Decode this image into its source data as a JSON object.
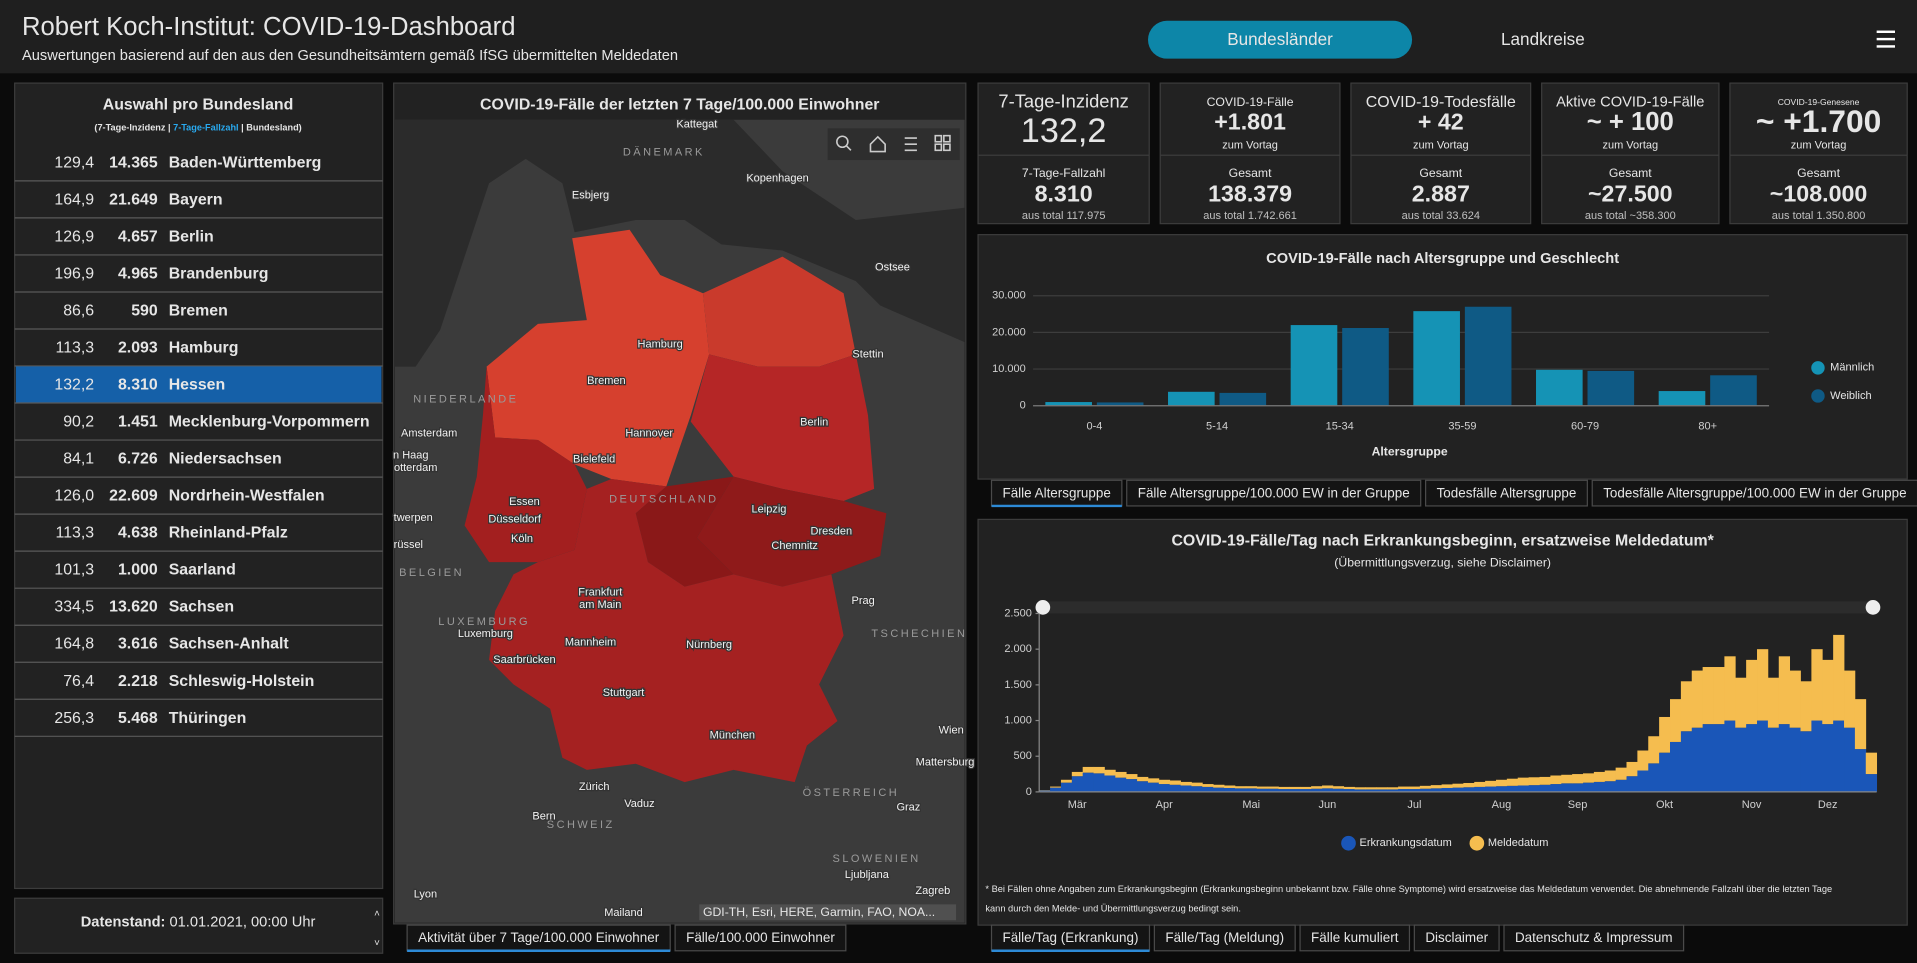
{
  "header": {
    "title": "Robert Koch-Institut: COVID-19-Dashboard",
    "subtitle": "Auswertungen basierend auf den aus den Gesundheitsämtern gemäß IfSG übermittelten Meldedaten",
    "tabs": [
      "Bundesländer",
      "Landkreise"
    ]
  },
  "states": {
    "title": "Auswahl pro Bundesland",
    "legend": [
      "(7-Tage-Inzidenz |",
      "7-Tage-Fallzahl",
      "| Bundesland)"
    ],
    "rows": [
      [
        "129,4",
        "14.365",
        "Baden-Württemberg"
      ],
      [
        "164,9",
        "21.649",
        "Bayern"
      ],
      [
        "126,9",
        "4.657",
        "Berlin"
      ],
      [
        "196,9",
        "4.965",
        "Brandenburg"
      ],
      [
        "86,6",
        "590",
        "Bremen"
      ],
      [
        "113,3",
        "2.093",
        "Hamburg"
      ],
      [
        "132,2",
        "8.310",
        "Hessen"
      ],
      [
        "90,2",
        "1.451",
        "Mecklenburg-Vorpommern"
      ],
      [
        "84,1",
        "6.726",
        "Niedersachsen"
      ],
      [
        "126,0",
        "22.609",
        "Nordrhein-Westfalen"
      ],
      [
        "113,3",
        "4.638",
        "Rheinland-Pfalz"
      ],
      [
        "101,3",
        "1.000",
        "Saarland"
      ],
      [
        "334,5",
        "13.620",
        "Sachsen"
      ],
      [
        "164,8",
        "3.616",
        "Sachsen-Anhalt"
      ],
      [
        "76,4",
        "2.218",
        "Schleswig-Holstein"
      ],
      [
        "256,3",
        "5.468",
        "Thüringen"
      ]
    ],
    "status_label": "Datenstand:",
    "status_value": "01.01.2021, 00:00 Uhr"
  },
  "map": {
    "title": "COVID-19-Fälle der letzten 7 Tage/100.000 Einwohner",
    "labels": [
      "Kattegat",
      "DÄNEMARK",
      "Kopenhagen",
      "Esbjerg",
      "Ostsee",
      "Hamburg",
      "Stettin",
      "Bremen",
      "NIEDERLANDE",
      "Amsterdam",
      "Hannover",
      "Berlin",
      "n Haag",
      "Bielefeld",
      "otterdam",
      "DEUTSCHLAND",
      "Essen",
      "Leipzig",
      "twerpen",
      "Düsseldorf",
      "Dresden",
      "Köln",
      "rüssel",
      "Chemnitz",
      "BELGIEN",
      "Frankfurt",
      "am Main",
      "Prag",
      "LUXEMBURG",
      "Luxemburg",
      "TSCHECHIEN",
      "Mannheim",
      "Nürnberg",
      "Saarbrücken",
      "Stuttgart",
      "München",
      "Wien",
      "Mattersburg",
      "Zürich",
      "ÖSTERREICH",
      "Vaduz",
      "Graz",
      "Bern",
      "SCHWEIZ",
      "SLOWENIEN",
      "Ljubljana",
      "Zagreb",
      "Lyon",
      "Mailand"
    ],
    "attribution": "GDI-TH, Esri, HERE, Garmin, FAO, NOA...",
    "tabs": [
      "Aktivität über 7 Tage/100.000 Einwohner",
      "Fälle/100.000 Einwohner"
    ]
  },
  "kpis": [
    {
      "label": "7-Tage-Inzidenz",
      "value": "132,2",
      "bottom_label": "7-Tage-Fallzahl",
      "bottom_value": "8.310",
      "bottom_note": "aus total 117.975",
      "colors": [
        "#ffffff",
        "#29aaf0"
      ]
    },
    {
      "label": "COVID-19-Fälle",
      "value": "+1.801",
      "note": "zum Vortag",
      "bottom_label": "Gesamt",
      "bottom_value": "138.379",
      "bottom_note": "aus total 1.742.661",
      "colors": [
        "#29aaf0",
        "#29aaf0"
      ]
    },
    {
      "label": "COVID-19-Todesfälle",
      "value": "+ 42",
      "note": "zum Vortag",
      "bottom_label": "Gesamt",
      "bottom_value": "2.887",
      "bottom_note": "aus total 33.624",
      "colors": [
        "#bdbdbd",
        "#bdbdbd"
      ]
    },
    {
      "label": "Aktive COVID-19-Fälle",
      "value": "~ + 100",
      "note": "zum Vortag",
      "bottom_label": "Gesamt",
      "bottom_value": "~27.500",
      "bottom_note": "aus total ~358.300",
      "colors": [
        "#f5a623",
        "#f5a623"
      ]
    },
    {
      "label": "COVID-19-Genesene",
      "value": "~ +1.700",
      "note": "zum Vortag",
      "bottom_label": "Gesamt",
      "bottom_value": "~108.000",
      "bottom_note": "aus total 1.350.800",
      "colors": [
        "#4caf1a",
        "#4caf1a"
      ]
    }
  ],
  "age_tabs": [
    "Fälle Altersgruppe",
    "Fälle Altersgruppe/100.000 EW in der Gruppe",
    "Todesfälle Altersgruppe",
    "Todesfälle Altersgruppe/100.000 EW in der Gruppe"
  ],
  "daily_tabs": [
    "Fälle/Tag (Erkrankung)",
    "Fälle/Tag (Meldung)",
    "Fälle kumuliert",
    "Disclaimer",
    "Datenschutz & Impressum"
  ],
  "chart_data": [
    {
      "type": "bar",
      "title": "COVID-19-Fälle nach Altersgruppe und Geschlecht",
      "x_label": "Altersgruppe",
      "categories": [
        "0-4",
        "5-14",
        "15-34",
        "35-59",
        "60-79",
        "80+"
      ],
      "series": [
        {
          "name": "Männlich",
          "color": "#1593b5",
          "values": [
            1000,
            3800,
            22000,
            25800,
            9800,
            4000
          ]
        },
        {
          "name": "Weiblich",
          "color": "#0f5a85",
          "values": [
            900,
            3500,
            21200,
            27000,
            9500,
            8300
          ]
        }
      ],
      "ylim": [
        0,
        30000
      ],
      "yticks": [
        0,
        {
          "value": 10000,
          "label": "10.000"
        },
        {
          "value": 20000,
          "label": "20.000"
        },
        {
          "value": 30000,
          "label": "30.000"
        }
      ],
      "grid": true
    },
    {
      "type": "stacked_bar",
      "title": "COVID-19-Fälle/Tag nach Erkrankungsbeginn, ersatzweise Meldedatum*",
      "subtitle": "(Übermittlungsverzug, siehe Disclaimer)",
      "categories": [
        null,
        null,
        null,
        "Mär",
        null,
        null,
        null,
        null,
        null,
        null,
        null,
        "Apr",
        null,
        null,
        null,
        null,
        null,
        null,
        null,
        "Mai",
        null,
        null,
        null,
        null,
        null,
        null,
        "Jun",
        null,
        null,
        null,
        null,
        null,
        null,
        null,
        "Jul",
        null,
        null,
        null,
        null,
        null,
        null,
        null,
        "Aug",
        null,
        null,
        null,
        null,
        null,
        null,
        "Sep",
        null,
        null,
        null,
        null,
        null,
        null,
        null,
        "Okt",
        null,
        null,
        null,
        null,
        null,
        null,
        null,
        "Nov",
        null,
        null,
        null,
        null,
        null,
        null,
        "Dez",
        null,
        null,
        null,
        null
      ],
      "series": [
        {
          "name": "Erkrankungsdatum",
          "color": "#1a56b8",
          "values": [
            20,
            60,
            130,
            220,
            270,
            260,
            230,
            200,
            180,
            150,
            130,
            110,
            100,
            90,
            80,
            70,
            60,
            55,
            50,
            50,
            45,
            45,
            40,
            40,
            40,
            45,
            50,
            45,
            40,
            35,
            35,
            35,
            35,
            40,
            40,
            45,
            50,
            55,
            60,
            65,
            70,
            75,
            80,
            85,
            90,
            95,
            100,
            110,
            120,
            120,
            130,
            140,
            150,
            170,
            220,
            300,
            400,
            550,
            700,
            850,
            900,
            950,
            950,
            1000,
            900,
            950,
            1000,
            900,
            950,
            900,
            850,
            1000,
            950,
            1000,
            900,
            600,
            250
          ]
        },
        {
          "name": "Meldedatum",
          "color": "#f5bd4f",
          "values": [
            5,
            15,
            40,
            60,
            80,
            90,
            80,
            80,
            70,
            60,
            60,
            60,
            60,
            50,
            50,
            40,
            40,
            35,
            30,
            30,
            30,
            30,
            30,
            30,
            30,
            35,
            40,
            35,
            30,
            30,
            30,
            30,
            30,
            35,
            35,
            40,
            45,
            50,
            55,
            60,
            70,
            80,
            90,
            100,
            110,
            110,
            110,
            120,
            120,
            130,
            130,
            140,
            150,
            170,
            200,
            280,
            380,
            500,
            600,
            700,
            800,
            800,
            800,
            900,
            700,
            900,
            1000,
            700,
            950,
            800,
            700,
            1000,
            900,
            1200,
            800,
            700,
            300
          ]
        }
      ],
      "ylim": [
        0,
        2500
      ],
      "yticks": [
        0,
        500,
        {
          "value": 1000,
          "label": "1.000"
        },
        {
          "value": 1500,
          "label": "1.500"
        },
        {
          "value": 2000,
          "label": "2.000"
        },
        {
          "value": 2500,
          "label": "2.500"
        }
      ],
      "grid": false,
      "footnote": [
        "* Bei Fällen ohne Angaben zum Erkrankungsbeginn (Erkrankungsbeginn unbekannt bzw. Fälle ohne Symptome) wird ersatzweise das Meldedatum verwendet. Die abnehmende Fallzahl über die letzten Tage",
        "kann durch den Melde- und Übermittlungsverzug bedingt sein."
      ]
    }
  ]
}
